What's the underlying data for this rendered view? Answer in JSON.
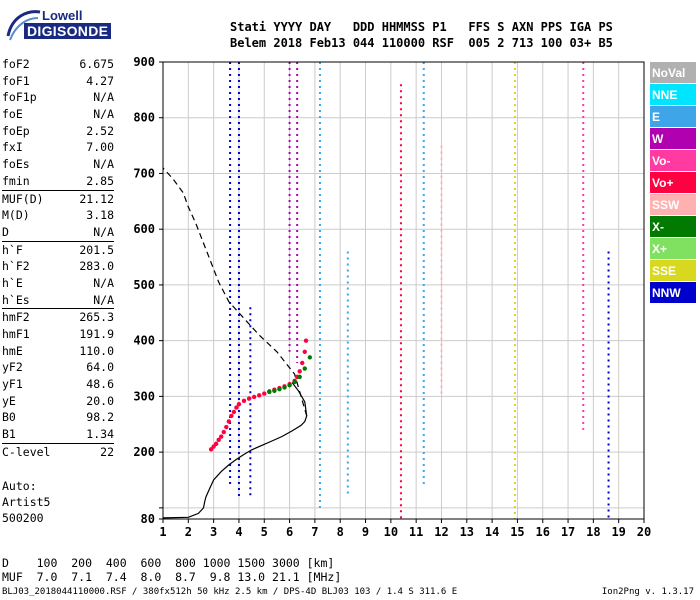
{
  "logo": {
    "line1": "Lowell",
    "line2": "DIGISONDE"
  },
  "header": {
    "row1": "Stati YYYY DAY   DDD HHMMSS P1   FFS S AXN PPS IGA PS",
    "row2": "Belem 2018 Feb13 044 110000 RSF  005 2 713 100 03+ B5"
  },
  "params": [
    {
      "k": "foF2",
      "v": "6.675"
    },
    {
      "k": "foF1",
      "v": "4.27"
    },
    {
      "k": "foF1p",
      "v": "N/A"
    },
    {
      "k": "foE",
      "v": "N/A"
    },
    {
      "k": "foEp",
      "v": "2.52"
    },
    {
      "k": "fxI",
      "v": "7.00"
    },
    {
      "k": "foEs",
      "v": "N/A"
    },
    {
      "k": "fmin",
      "v": "2.85"
    },
    {
      "sep": true
    },
    {
      "k": "MUF(D)",
      "v": "21.12"
    },
    {
      "k": "M(D)",
      "v": "3.18"
    },
    {
      "k": "D",
      "v": "N/A"
    },
    {
      "sep": true
    },
    {
      "k": "h`F",
      "v": "201.5"
    },
    {
      "k": "h`F2",
      "v": "283.0"
    },
    {
      "k": "h`E",
      "v": "N/A"
    },
    {
      "k": "h`Es",
      "v": "N/A"
    },
    {
      "sep": true
    },
    {
      "k": "hmF2",
      "v": "265.3"
    },
    {
      "k": "hmF1",
      "v": "191.9"
    },
    {
      "k": "hmE",
      "v": "110.0"
    },
    {
      "k": "yF2",
      "v": "64.0"
    },
    {
      "k": "yF1",
      "v": "48.6"
    },
    {
      "k": "yE",
      "v": "20.0"
    },
    {
      "k": "B0",
      "v": "98.2"
    },
    {
      "k": "B1",
      "v": "1.34"
    },
    {
      "sep": true
    },
    {
      "k": "C-level",
      "v": "22"
    }
  ],
  "auto": {
    "l1": "Auto:",
    "l2": "Artist5",
    "l3": "500200"
  },
  "footer": {
    "d_line": "D    100  200  400  600  800 1000 1500 3000 [km]",
    "muf_line": "MUF  7.0  7.1  7.4  8.0  8.7  9.8 13.0 21.1 [MHz]",
    "file_line": "BLJ03_2018044110000.RSF / 380fx512h 50 kHz 2.5 km / DPS-4D BLJ03 103 / 1.4 S 311.6 E",
    "version": "Ion2Png v. 1.3.17"
  },
  "legend": [
    {
      "label": "NoVal",
      "color": "#b0b0b0"
    },
    {
      "label": "NNE",
      "color": "#00e5ff"
    },
    {
      "label": "E",
      "color": "#3da5e8"
    },
    {
      "label": "W",
      "color": "#b000b0"
    },
    {
      "label": "Vo-",
      "color": "#ff3aa0"
    },
    {
      "label": "Vo+",
      "color": "#ff0040"
    },
    {
      "label": "SSW",
      "color": "#ffb0b0"
    },
    {
      "label": "X-",
      "color": "#007a00"
    },
    {
      "label": "X+",
      "color": "#80e060"
    },
    {
      "label": "SSE",
      "color": "#d8d820"
    },
    {
      "label": "NNW",
      "color": "#0000cc"
    }
  ],
  "chart_data": {
    "type": "scatter",
    "xlabel": "",
    "ylabel": "",
    "xlim": [
      1,
      20
    ],
    "ylim": [
      80,
      900
    ],
    "x_ticks": [
      1,
      2,
      3,
      4,
      5,
      6,
      7,
      8,
      9,
      10,
      11,
      12,
      13,
      14,
      15,
      16,
      17,
      18,
      19,
      20
    ],
    "y_ticks": [
      80,
      100,
      200,
      300,
      400,
      500,
      600,
      700,
      800,
      900
    ],
    "y_tick_labels": [
      "80",
      "",
      "200",
      "300",
      "400",
      "500",
      "600",
      "700",
      "800",
      "900"
    ],
    "grid": true,
    "series": [
      {
        "id": "profile",
        "style": "solid",
        "color": "#000000",
        "x": [
          1.0,
          2.0,
          2.4,
          2.6,
          2.65,
          2.7,
          2.85,
          3.0,
          3.3,
          3.6,
          3.9,
          4.2,
          4.5,
          4.9,
          5.3,
          5.7,
          6.1,
          6.45,
          6.6,
          6.675,
          6.6,
          6.35,
          6.1
        ],
        "y": [
          82,
          83,
          90,
          100,
          112,
          120,
          135,
          150,
          165,
          177,
          187,
          196,
          204,
          212,
          220,
          228,
          238,
          248,
          255,
          265,
          290,
          310,
          325
        ]
      },
      {
        "id": "topside",
        "style": "dashed",
        "color": "#000000",
        "x": [
          6.675,
          6.2,
          5.5,
          4.8,
          4.2,
          3.6,
          3.2,
          2.9,
          2.6,
          2.3,
          2.0,
          1.8,
          1.4,
          1.0
        ],
        "y": [
          265,
          340,
          380,
          410,
          440,
          470,
          505,
          540,
          575,
          610,
          640,
          665,
          690,
          710
        ]
      },
      {
        "id": "trace_o",
        "style": "points",
        "color": "#ff0040",
        "x": [
          2.9,
          3.0,
          3.1,
          3.2,
          3.3,
          3.4,
          3.5,
          3.6,
          3.7,
          3.8,
          3.9,
          4.0,
          4.2,
          4.4,
          4.6,
          4.8,
          5.0,
          5.2,
          5.4,
          5.6,
          5.8,
          6.0,
          6.2,
          6.3,
          6.4,
          6.5,
          6.6,
          6.65
        ],
        "y": [
          205,
          210,
          215,
          222,
          228,
          236,
          245,
          255,
          265,
          272,
          280,
          286,
          292,
          296,
          299,
          302,
          305,
          309,
          312,
          315,
          318,
          322,
          328,
          335,
          345,
          360,
          380,
          400
        ]
      },
      {
        "id": "trace_x",
        "style": "points",
        "color": "#007a00",
        "x": [
          5.2,
          5.4,
          5.6,
          5.8,
          6.0,
          6.2,
          6.4,
          6.6,
          6.8
        ],
        "y": [
          308,
          310,
          313,
          316,
          320,
          326,
          335,
          350,
          370
        ]
      }
    ],
    "vertical_lines": [
      {
        "x": 3.65,
        "y0": 140,
        "y1": 900,
        "color": "#0000cc"
      },
      {
        "x": 4.0,
        "y0": 120,
        "y1": 900,
        "color": "#0000cc"
      },
      {
        "x": 4.45,
        "y0": 120,
        "y1": 460,
        "color": "#0000cc"
      },
      {
        "x": 6.0,
        "y0": 380,
        "y1": 900,
        "color": "#b000b0"
      },
      {
        "x": 6.3,
        "y0": 360,
        "y1": 900,
        "color": "#b000b0"
      },
      {
        "x": 7.2,
        "y0": 100,
        "y1": 900,
        "color": "#3da5e8"
      },
      {
        "x": 8.3,
        "y0": 120,
        "y1": 560,
        "color": "#3da5e8"
      },
      {
        "x": 10.4,
        "y0": 80,
        "y1": 860,
        "color": "#ff0040"
      },
      {
        "x": 11.3,
        "y0": 140,
        "y1": 900,
        "color": "#3da5e8"
      },
      {
        "x": 12.0,
        "y0": 300,
        "y1": 750,
        "color": "#ffb0b0"
      },
      {
        "x": 14.9,
        "y0": 80,
        "y1": 900,
        "color": "#d8d820"
      },
      {
        "x": 17.6,
        "y0": 240,
        "y1": 900,
        "color": "#ff3aa0"
      },
      {
        "x": 18.6,
        "y0": 80,
        "y1": 560,
        "color": "#0000cc"
      }
    ]
  }
}
